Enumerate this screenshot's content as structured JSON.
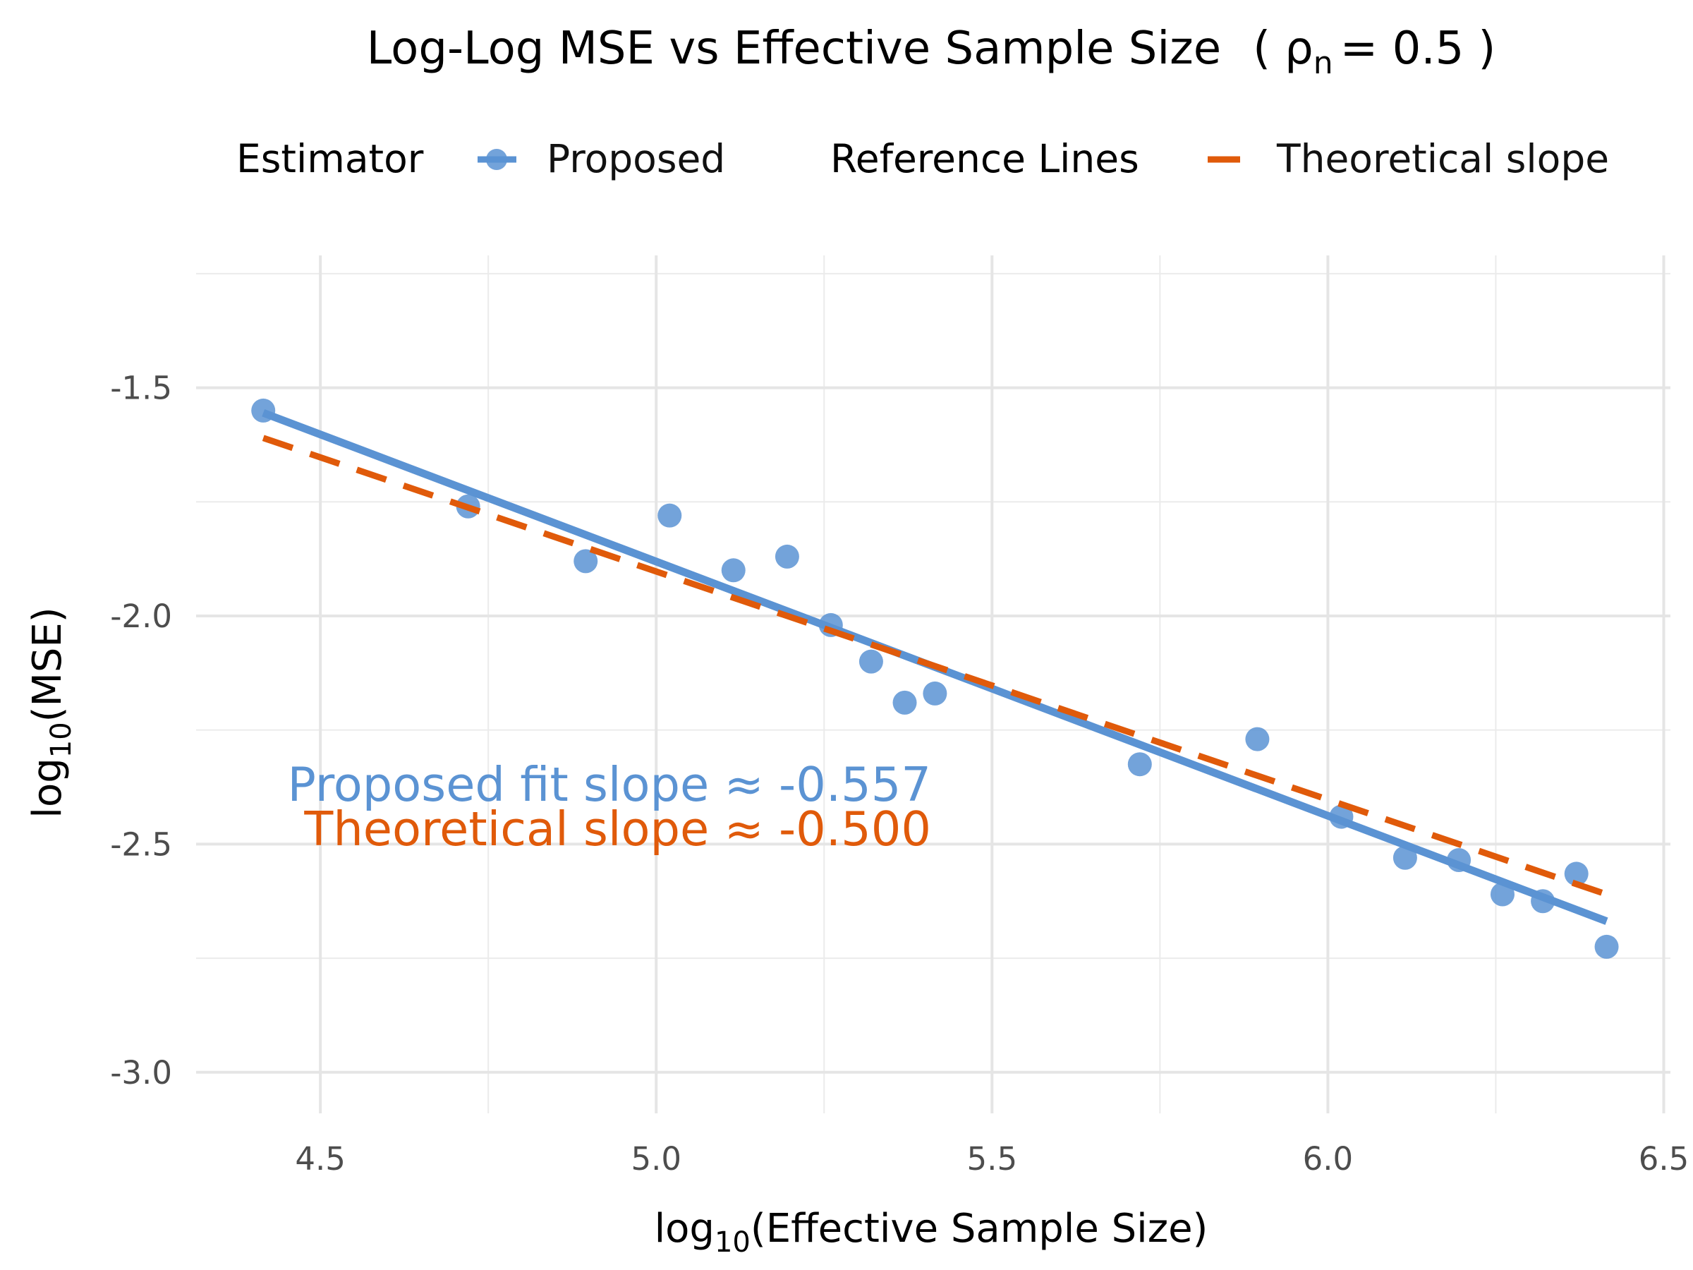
{
  "chart_data": {
    "type": "scatter",
    "title": {
      "main": "Log-Log MSE vs Effective Sample Size",
      "paren_open": "(",
      "symbol": "ρ",
      "subscript": "n",
      "equals": "= 0.5",
      "paren_close": ")"
    },
    "xlabel": {
      "prefix": "log",
      "subscript": "10",
      "text": "(Effective Sample Size)"
    },
    "ylabel": {
      "prefix": "log",
      "subscript": "10",
      "text": "(MSE)"
    },
    "xlim": [
      4.315,
      6.51
    ],
    "ylim": [
      -3.09,
      -1.21
    ],
    "x_ticks": [
      4.5,
      5.0,
      5.5,
      6.0,
      6.5
    ],
    "x_tick_labels": [
      "4.5",
      "5.0",
      "5.5",
      "6.0",
      "6.5"
    ],
    "y_ticks": [
      -3.0,
      -2.5,
      -2.0,
      -1.5
    ],
    "y_tick_labels": [
      "-3.0",
      "-2.5",
      "-2.0",
      "-1.5"
    ],
    "grid": true,
    "legend_position": "top",
    "legend": {
      "estimator_title": "Estimator",
      "estimator_label": "Proposed",
      "reference_title": "Reference Lines",
      "reference_label": "Theoretical slope"
    },
    "series": [
      {
        "name": "Proposed",
        "kind": "points",
        "color": "#5b93d3",
        "points": [
          [
            4.415,
            -1.55
          ],
          [
            4.72,
            -1.76
          ],
          [
            4.895,
            -1.88
          ],
          [
            5.02,
            -1.78
          ],
          [
            5.115,
            -1.9
          ],
          [
            5.195,
            -1.87
          ],
          [
            5.26,
            -2.02
          ],
          [
            5.32,
            -2.1
          ],
          [
            5.37,
            -2.19
          ],
          [
            5.415,
            -2.17
          ],
          [
            5.72,
            -2.325
          ],
          [
            5.895,
            -2.27
          ],
          [
            6.02,
            -2.44
          ],
          [
            6.115,
            -2.53
          ],
          [
            6.195,
            -2.535
          ],
          [
            6.26,
            -2.61
          ],
          [
            6.32,
            -2.625
          ],
          [
            6.37,
            -2.565
          ],
          [
            6.415,
            -2.725
          ]
        ]
      },
      {
        "name": "Proposed fit",
        "kind": "line",
        "color": "#5b93d3",
        "from": [
          4.415,
          -1.555
        ],
        "to": [
          6.415,
          -2.669
        ]
      },
      {
        "name": "Theoretical slope",
        "kind": "dashed-line",
        "color": "#e05a0a",
        "from": [
          4.415,
          -1.61
        ],
        "to": [
          6.415,
          -2.61
        ]
      }
    ],
    "annotations": [
      {
        "text": "Proposed fit slope ≈ -0.557",
        "color": "#5b93d3"
      },
      {
        "text": "Theoretical slope ≈ -0.500",
        "color": "#e05a0a"
      }
    ]
  }
}
